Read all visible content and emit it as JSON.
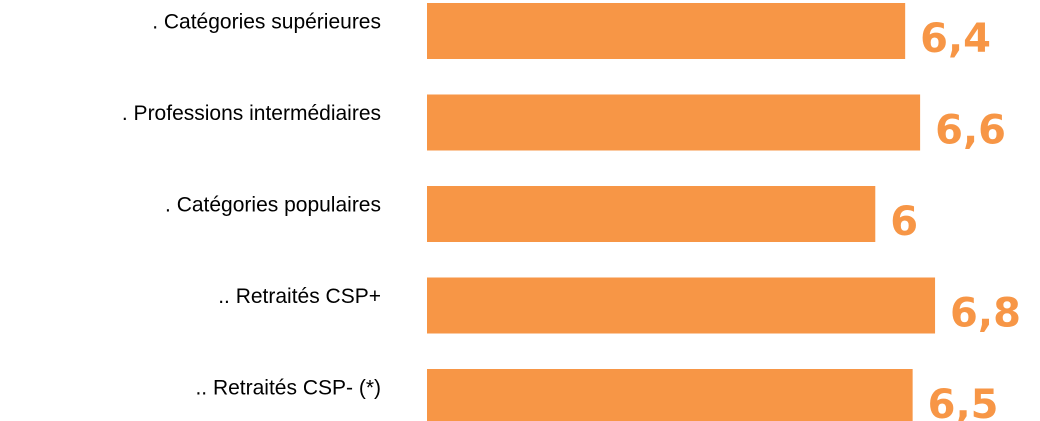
{
  "chart_data": {
    "type": "hbar",
    "categories": [
      ". Catégories supérieures",
      ". Professions intermédiaires",
      ". Catégories populaires",
      ".. Retraités CSP+",
      ".. Retraités CSP- (*)"
    ],
    "values": [
      6.4,
      6.6,
      6,
      6.8,
      6.5
    ],
    "value_labels": [
      "6,4",
      "6,6",
      "6",
      "6,8",
      "6,5"
    ],
    "color": "#f79646",
    "xlim": [
      0,
      7
    ]
  }
}
